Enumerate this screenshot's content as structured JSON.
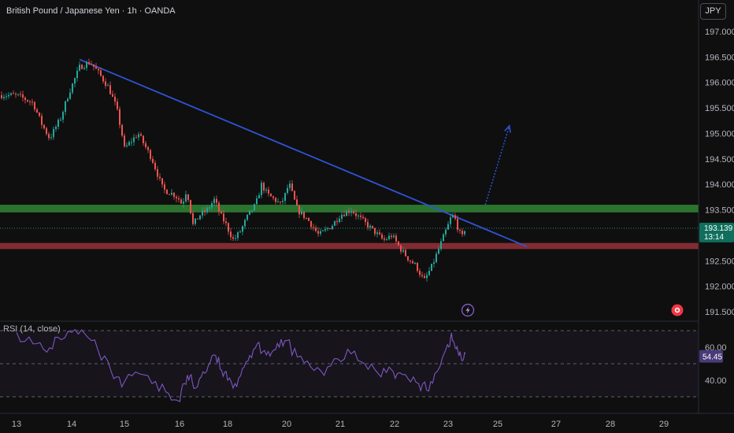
{
  "header": {
    "title": "British Pound / Japanese Yen · 1h · OANDA",
    "currency_button": "JPY",
    "rsi_label": "RSI (14, close)"
  },
  "colors": {
    "up": "#26a69a",
    "down": "#ef5350",
    "support_band": "#2e7d32",
    "resistance_band": "#8b2f35",
    "trendline": "#2f54d6",
    "rsi_line": "#7e57c2",
    "last_price_tag": "#0f6e5c"
  },
  "icons": {
    "lightning": "lightning-icon",
    "alert": "alert-icon"
  },
  "chart_data": [
    {
      "type": "candlestick",
      "title": "British Pound / Japanese Yen · 1h · OANDA",
      "xlabel": "",
      "ylabel": "",
      "ylim": [
        191.38,
        197.2
      ],
      "y_ticks": [
        197.0,
        196.5,
        196.0,
        195.5,
        195.0,
        194.5,
        194.0,
        193.5,
        193.0,
        192.5,
        192.0,
        191.5
      ],
      "y_tick_labels": [
        "197.000",
        "196.500",
        "196.000",
        "195.500",
        "195.000",
        "194.500",
        "194.000",
        "193.500",
        "193.000",
        "192.500",
        "192.000",
        "191.500"
      ],
      "x_ticks": [
        {
          "label": "13",
          "date": "13"
        },
        {
          "label": "14",
          "date": "14"
        },
        {
          "label": "15",
          "date": "15"
        },
        {
          "label": "16",
          "date": "16"
        },
        {
          "label": "18",
          "date": "18"
        },
        {
          "label": "20",
          "date": "20"
        },
        {
          "label": "21",
          "date": "21"
        },
        {
          "label": "22",
          "date": "22"
        },
        {
          "label": "23",
          "date": "23"
        },
        {
          "label": "25",
          "date": "25"
        },
        {
          "label": "27",
          "date": "27"
        },
        {
          "label": "28",
          "date": "28"
        },
        {
          "label": "29",
          "date": "29"
        }
      ],
      "price_path": [
        [
          13.0,
          195.75
        ],
        [
          13.3,
          195.6
        ],
        [
          13.45,
          195.2
        ],
        [
          13.6,
          194.9
        ],
        [
          13.8,
          195.3
        ],
        [
          13.95,
          195.8
        ],
        [
          14.15,
          196.3
        ],
        [
          14.35,
          196.4
        ],
        [
          14.5,
          196.2
        ],
        [
          14.7,
          195.9
        ],
        [
          14.85,
          195.5
        ],
        [
          14.95,
          195.0
        ],
        [
          15.0,
          194.7
        ],
        [
          15.25,
          195.0
        ],
        [
          15.5,
          194.5
        ],
        [
          15.7,
          193.9
        ],
        [
          15.9,
          193.8
        ],
        [
          16.1,
          193.6
        ],
        [
          16.3,
          193.9
        ],
        [
          16.45,
          193.5
        ],
        [
          16.55,
          193.2
        ],
        [
          16.85,
          193.4
        ],
        [
          17.15,
          193.5
        ],
        [
          17.45,
          193.7
        ],
        [
          17.7,
          193.4
        ],
        [
          17.95,
          193.2
        ],
        [
          18.2,
          192.9
        ],
        [
          18.45,
          193.1
        ],
        [
          18.7,
          193.4
        ],
        [
          18.95,
          193.6
        ],
        [
          19.15,
          194.0
        ],
        [
          19.35,
          193.8
        ],
        [
          19.6,
          193.7
        ],
        [
          19.8,
          193.6
        ],
        [
          19.95,
          193.8
        ],
        [
          20.05,
          194.0
        ],
        [
          20.2,
          193.5
        ],
        [
          20.4,
          193.3
        ],
        [
          20.6,
          193.0
        ],
        [
          20.85,
          193.2
        ],
        [
          21.0,
          193.4
        ],
        [
          21.2,
          193.5
        ],
        [
          21.4,
          193.3
        ],
        [
          21.6,
          193.1
        ],
        [
          21.8,
          192.9
        ],
        [
          21.95,
          193.0
        ],
        [
          22.1,
          192.75
        ],
        [
          22.25,
          192.55
        ],
        [
          22.4,
          192.4
        ],
        [
          22.55,
          192.1
        ],
        [
          22.7,
          192.4
        ],
        [
          22.85,
          192.8
        ],
        [
          23.0,
          193.2
        ],
        [
          23.15,
          193.4
        ],
        [
          23.3,
          193.3
        ],
        [
          23.45,
          193.05
        ],
        [
          23.6,
          192.95
        ],
        [
          23.7,
          193.2
        ]
      ],
      "last_price": "193.139",
      "countdown": "13:14",
      "support_zone": [
        193.45,
        193.6
      ],
      "resistance_zone": [
        192.73,
        192.85
      ],
      "trendline": {
        "from": [
          14.15,
          196.45
        ],
        "to": [
          26.0,
          192.78
        ]
      },
      "projection_arrow": {
        "from": [
          24.5,
          193.6
        ],
        "to": [
          25.4,
          195.15
        ]
      }
    },
    {
      "type": "line",
      "title": "RSI (14, close)",
      "ylim": [
        24,
        76
      ],
      "y_ticks": [
        60,
        40
      ],
      "y_tick_labels": [
        "60.00",
        "40.00"
      ],
      "band_levels": [
        70,
        30
      ],
      "last_value": "54.45",
      "series": [
        {
          "name": "RSI (14, close)",
          "points": [
            [
              13.0,
              69
            ],
            [
              13.3,
              62
            ],
            [
              13.55,
              57
            ],
            [
              13.75,
              66
            ],
            [
              14.0,
              69
            ],
            [
              14.25,
              68
            ],
            [
              14.5,
              58
            ],
            [
              14.75,
              45
            ],
            [
              14.95,
              36
            ],
            [
              15.2,
              45
            ],
            [
              15.5,
              38
            ],
            [
              15.75,
              33
            ],
            [
              15.95,
              28
            ],
            [
              16.2,
              38
            ],
            [
              16.45,
              43
            ],
            [
              16.6,
              35
            ],
            [
              16.9,
              42
            ],
            [
              17.2,
              49
            ],
            [
              17.5,
              55
            ],
            [
              17.75,
              46
            ],
            [
              18.0,
              40
            ],
            [
              18.25,
              38
            ],
            [
              18.5,
              47
            ],
            [
              18.75,
              55
            ],
            [
              19.0,
              62
            ],
            [
              19.25,
              58
            ],
            [
              19.5,
              57
            ],
            [
              19.75,
              60
            ],
            [
              20.0,
              64
            ],
            [
              20.2,
              54
            ],
            [
              20.45,
              48
            ],
            [
              20.7,
              43
            ],
            [
              20.95,
              53
            ],
            [
              21.2,
              56
            ],
            [
              21.45,
              50
            ],
            [
              21.7,
              44
            ],
            [
              21.9,
              48
            ],
            [
              22.05,
              44
            ],
            [
              22.25,
              41
            ],
            [
              22.45,
              38
            ],
            [
              22.6,
              34
            ],
            [
              22.75,
              44
            ],
            [
              22.95,
              58
            ],
            [
              23.1,
              66
            ],
            [
              23.25,
              62
            ],
            [
              23.4,
              57
            ],
            [
              23.55,
              52
            ],
            [
              23.7,
              56
            ]
          ]
        }
      ]
    }
  ]
}
